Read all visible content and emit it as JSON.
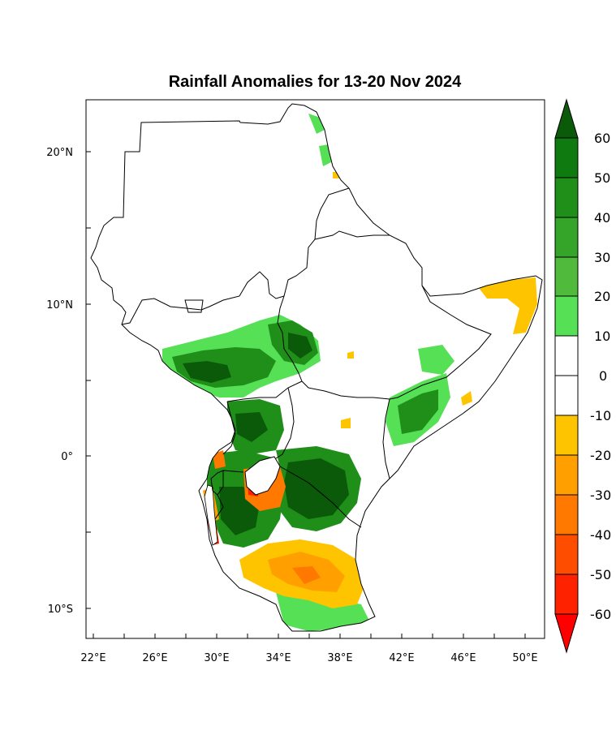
{
  "map": {
    "title": "Rainfall Anomalies for 13-20 Nov 2024",
    "lon_labels": [
      "22°E",
      "26°E",
      "30°E",
      "34°E",
      "38°E",
      "42°E",
      "46°E",
      "50°E"
    ],
    "lat_labels": [
      "20°N",
      "10°N",
      "0°",
      "10°S"
    ],
    "region": "East Africa"
  },
  "colorbar": {
    "labels": [
      "60",
      "50",
      "40",
      "30",
      "20",
      "10",
      "0",
      "-10",
      "-20",
      "-30",
      "-40",
      "-50",
      "-60"
    ],
    "colors": [
      "#0a5a0a",
      "#0f7a0f",
      "#1f8f1a",
      "#35a52a",
      "#4fba3b",
      "#55e055",
      "#ffffff",
      "#ffffff",
      "#ffc400",
      "#ffa000",
      "#ff7800",
      "#ff4d00",
      "#ff2200",
      "#ff0000"
    ]
  },
  "legend_colors": {
    "wet_strong": "#0a5a0a",
    "wet_moderate": "#1f8f1a",
    "wet_light": "#55e055",
    "dry_light": "#ffc400",
    "dry_moderate": "#ffa000",
    "dry_strong": "#ff2200"
  }
}
